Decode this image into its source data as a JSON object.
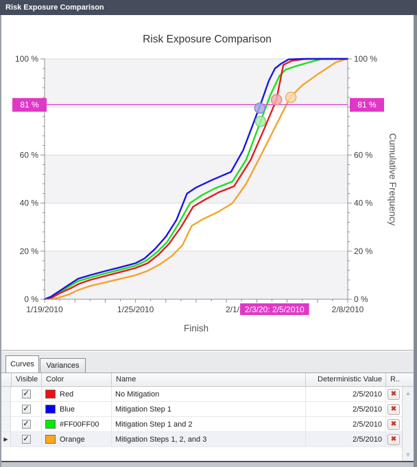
{
  "window": {
    "title": "Risk Exposure Comparison"
  },
  "icons": {
    "check": "✓",
    "delete": "✖",
    "row_selector": "▶",
    "up_arrow": "▲",
    "down_arrow": "▼"
  },
  "chart_data": {
    "type": "line",
    "title": "Risk Exposure Comparison",
    "xlabel": "Finish",
    "ylabel": "Cumulative Frequency",
    "x_unit": "days since 1/19/2010",
    "xlim_days": [
      0,
      20
    ],
    "ylim": [
      0,
      100
    ],
    "x_ticks": [
      {
        "day": 0,
        "label": "1/19/2010"
      },
      {
        "day": 6,
        "label": "1/25/2010"
      },
      {
        "day": 13,
        "label": "2/1/2010"
      },
      {
        "day": 20,
        "label": "2/8/2010"
      }
    ],
    "y_ticks": [
      {
        "pct": 0,
        "label": "0 %"
      },
      {
        "pct": 20,
        "label": "20 %"
      },
      {
        "pct": 40,
        "label": "40 %"
      },
      {
        "pct": 60,
        "label": "60 %"
      },
      {
        "pct": 100,
        "label": "100 %"
      }
    ],
    "y_gridlines_pct": [
      20,
      40,
      60,
      80
    ],
    "band_fill_pcts": [
      [
        0,
        20
      ],
      [
        40,
        60
      ],
      [
        80,
        100
      ]
    ],
    "band_color": "#f3f2f4",
    "crosshair": {
      "y_pct": 81,
      "y_label": "81 %",
      "x_label": "2/3/20: 2/5/2010",
      "x_box_from_day": 12.9,
      "x_box_to_day": 17.45,
      "color": "#e038c6",
      "line_color": "#d24ec6"
    },
    "series": [
      {
        "name": "Mitigation Steps 1, 2, and 3",
        "color": "#f3a42c",
        "points": [
          [
            0.5,
            0
          ],
          [
            1,
            0.8
          ],
          [
            1.6,
            2
          ],
          [
            2.2,
            3.8
          ],
          [
            3,
            5.5
          ],
          [
            4,
            7
          ],
          [
            5,
            8.5
          ],
          [
            6,
            10
          ],
          [
            6.8,
            11.8
          ],
          [
            7.6,
            14.5
          ],
          [
            8.4,
            18
          ],
          [
            9.1,
            22.5
          ],
          [
            9.7,
            30.5
          ],
          [
            10.5,
            33.5
          ],
          [
            11.5,
            36.5
          ],
          [
            12.4,
            40
          ],
          [
            13.3,
            48
          ],
          [
            14.2,
            59
          ],
          [
            15,
            69
          ],
          [
            16.2,
            84
          ],
          [
            17,
            89
          ],
          [
            18,
            93.5
          ],
          [
            19.2,
            98.5
          ],
          [
            19.9,
            100
          ],
          [
            20,
            100
          ]
        ]
      },
      {
        "name": "Mitigation Step 1 and 2",
        "color": "#1fdd1f",
        "points": [
          [
            0,
            0
          ],
          [
            0.4,
            0.8
          ],
          [
            1,
            3
          ],
          [
            1.6,
            5.2
          ],
          [
            2.2,
            7.5
          ],
          [
            3,
            9
          ],
          [
            4,
            10.7
          ],
          [
            5,
            12.3
          ],
          [
            6,
            14
          ],
          [
            6.7,
            16
          ],
          [
            7.4,
            19.5
          ],
          [
            8.1,
            24
          ],
          [
            8.8,
            31
          ],
          [
            9.6,
            40
          ],
          [
            10.3,
            43
          ],
          [
            11.2,
            46
          ],
          [
            12.4,
            49
          ],
          [
            13.3,
            58
          ],
          [
            14.25,
            74
          ],
          [
            14.9,
            85
          ],
          [
            15.5,
            93
          ],
          [
            15.9,
            95.5
          ],
          [
            16.5,
            96.8
          ],
          [
            17.3,
            98.3
          ],
          [
            18.3,
            100
          ],
          [
            20,
            100
          ]
        ]
      },
      {
        "name": "No Mitigation",
        "color": "#e31b22",
        "points": [
          [
            0,
            0
          ],
          [
            0.5,
            0.7
          ],
          [
            1,
            2.5
          ],
          [
            1.7,
            4.5
          ],
          [
            2.3,
            6.5
          ],
          [
            3,
            8
          ],
          [
            4,
            9.7
          ],
          [
            5,
            11.3
          ],
          [
            6,
            13
          ],
          [
            6.8,
            15
          ],
          [
            7.5,
            18.5
          ],
          [
            8.2,
            23
          ],
          [
            9,
            30
          ],
          [
            9.8,
            38.5
          ],
          [
            10.6,
            41.5
          ],
          [
            11.5,
            44.5
          ],
          [
            12.5,
            47
          ],
          [
            13.6,
            58
          ],
          [
            14.5,
            71
          ],
          [
            15.3,
            83
          ],
          [
            15.75,
            97.5
          ],
          [
            16.3,
            99.2
          ],
          [
            17.2,
            100
          ],
          [
            20,
            100
          ]
        ]
      },
      {
        "name": "Mitigation Step 1",
        "color": "#1a17dd",
        "points": [
          [
            0,
            0
          ],
          [
            0.4,
            1
          ],
          [
            1,
            3.5
          ],
          [
            1.6,
            6
          ],
          [
            2.2,
            8.5
          ],
          [
            3,
            10
          ],
          [
            4,
            11.7
          ],
          [
            5,
            13.3
          ],
          [
            6,
            15
          ],
          [
            6.6,
            17
          ],
          [
            7.3,
            21
          ],
          [
            8,
            26
          ],
          [
            8.7,
            33
          ],
          [
            9.4,
            44
          ],
          [
            10,
            46.5
          ],
          [
            11,
            49.5
          ],
          [
            12.3,
            53
          ],
          [
            13.1,
            62
          ],
          [
            13.7,
            72
          ],
          [
            14.3,
            82
          ],
          [
            14.8,
            91
          ],
          [
            15.2,
            96
          ],
          [
            15.6,
            98
          ],
          [
            16.1,
            99.8
          ],
          [
            17,
            100
          ],
          [
            20,
            100
          ]
        ]
      }
    ],
    "markers": [
      {
        "curve": "Mitigation Step 1",
        "day": 14.2,
        "pct": 79.5,
        "fill": "#a9aae8",
        "stroke": "#8687cf"
      },
      {
        "curve": "Mitigation Step 1 and 2",
        "day": 14.25,
        "pct": 74,
        "fill": "#a8eda8",
        "stroke": "#7ed17e"
      },
      {
        "curve": "No Mitigation",
        "day": 15.3,
        "pct": 83,
        "fill": "#f2aeae",
        "stroke": "#d98f92"
      },
      {
        "curve": "Mitigation Steps 1, 2, and 3",
        "day": 16.25,
        "pct": 84,
        "fill": "#f7d9a8",
        "stroke": "#e3b36e"
      }
    ],
    "legend_position": "none",
    "grid": true
  },
  "tabs": [
    {
      "label": "Curves",
      "active": true
    },
    {
      "label": "Variances",
      "active": false
    }
  ],
  "table": {
    "columns": [
      "Visible",
      "Color",
      "Name",
      "Deterministic Value",
      "R..."
    ],
    "rows": [
      {
        "visible": true,
        "color": "#ee1111",
        "color_label": "Red",
        "name": "No Mitigation",
        "deterministic": "2/5/2010",
        "selected": false
      },
      {
        "visible": true,
        "color": "#0000ee",
        "color_label": "Blue",
        "name": "Mitigation Step 1",
        "deterministic": "2/5/2010",
        "selected": false
      },
      {
        "visible": true,
        "color": "#00ee00",
        "color_label": "#FF00FF00",
        "name": "Mitigation Step 1 and 2",
        "deterministic": "2/5/2010",
        "selected": false
      },
      {
        "visible": true,
        "color": "#ffa621",
        "color_label": "Orange",
        "name": "Mitigation Steps 1, 2, and 3",
        "deterministic": "2/5/2010",
        "selected": true
      }
    ]
  }
}
